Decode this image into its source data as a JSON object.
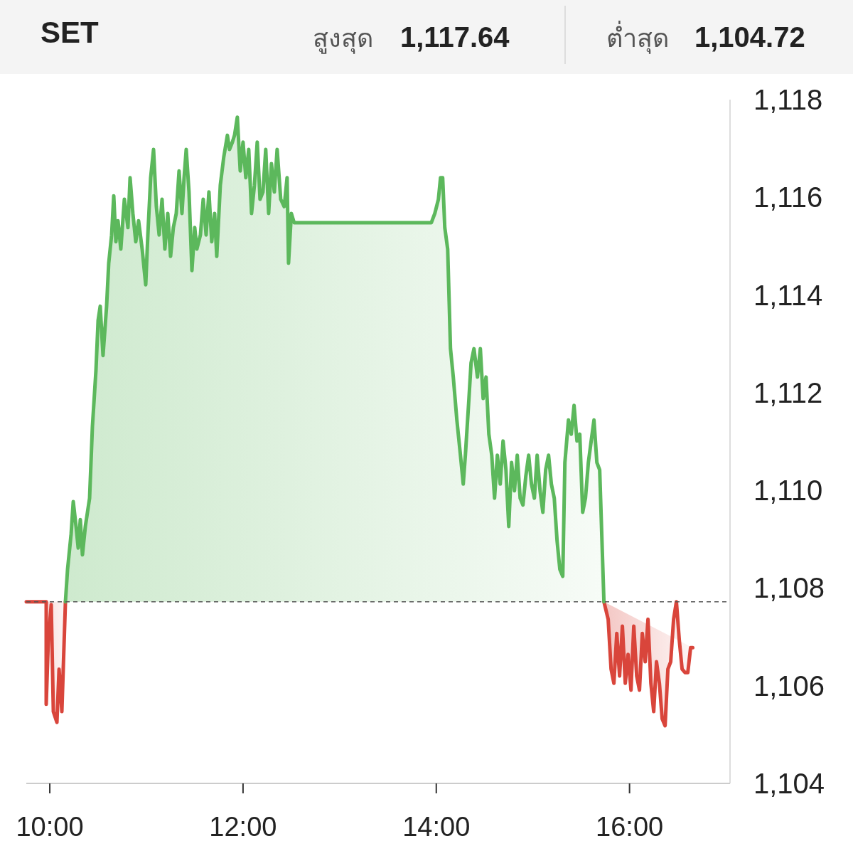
{
  "chart_data": {
    "type": "area",
    "title": "SET",
    "annotations": [
      "สูงสุด",
      "1,117.64",
      "ต่ำสุด",
      "1,104.72"
    ],
    "xlim": [
      9.757,
      17.04
    ],
    "ylim": [
      1104,
      1118
    ],
    "xticks": [
      {
        "value": 10,
        "label": "10:00"
      },
      {
        "value": 12,
        "label": "12:00"
      },
      {
        "value": 14,
        "label": "14:00"
      },
      {
        "value": 16,
        "label": "16:00"
      }
    ],
    "yticks": [
      {
        "value": 1104,
        "label": "1,104"
      },
      {
        "value": 1106,
        "label": "1,106"
      },
      {
        "value": 1108,
        "label": "1,108"
      },
      {
        "value": 1110,
        "label": "1,110"
      },
      {
        "value": 1112,
        "label": "1,112"
      },
      {
        "value": 1114,
        "label": "1,114"
      },
      {
        "value": 1116,
        "label": "1,116"
      },
      {
        "value": 1118,
        "label": "1,118"
      }
    ],
    "grid": false,
    "ref_lines": [
      {
        "axis": "y",
        "value": 1107.72,
        "color": "#555555",
        "line_style": "dashed"
      }
    ],
    "series": [
      {
        "color": "#d9453b",
        "x": [
          9.757,
          9.963,
          9.963,
          9.985,
          10.015,
          10.037,
          10.074,
          10.096,
          10.125,
          10.162
        ],
        "values": [
          1107.72,
          1107.72,
          1105.62,
          1106.93,
          1107.66,
          1105.47,
          1105.25,
          1106.34,
          1105.47,
          1107.72
        ]
      },
      {
        "color": "#d9453b",
        "x": [
          15.735,
          15.779,
          15.809,
          15.838,
          15.868,
          15.897,
          15.926,
          15.956,
          15.985,
          16.015,
          16.044,
          16.074,
          16.103,
          16.132,
          16.162,
          16.191,
          16.221,
          16.25,
          16.279,
          16.309,
          16.338,
          16.368,
          16.397,
          16.426,
          16.456,
          16.485,
          16.515,
          16.544,
          16.574,
          16.603,
          16.632,
          16.654
        ],
        "values": [
          1107.72,
          1107.36,
          1106.34,
          1106.05,
          1107.07,
          1106.2,
          1107.22,
          1106.05,
          1106.64,
          1105.91,
          1107.22,
          1106.2,
          1105.91,
          1107.07,
          1106.49,
          1107.36,
          1106.05,
          1105.47,
          1106.49,
          1106.05,
          1105.32,
          1105.18,
          1106.34,
          1106.49,
          1107.36,
          1107.72,
          1106.93,
          1106.34,
          1106.27,
          1106.27,
          1106.78,
          1106.78
        ]
      },
      {
        "color": "#5cb85c",
        "x": [
          10.162,
          10.184,
          10.221,
          10.243,
          10.272,
          10.294,
          10.316,
          10.338,
          10.368,
          10.412,
          10.441,
          10.478,
          10.5,
          10.522,
          10.551,
          10.588,
          10.61,
          10.64,
          10.662,
          10.684,
          10.706,
          10.735,
          10.772,
          10.809,
          10.831,
          10.86,
          10.89,
          10.919,
          10.956,
          10.993,
          11.015,
          11.044,
          11.074,
          11.103,
          11.132,
          11.162,
          11.191,
          11.221,
          11.25,
          11.279,
          11.309,
          11.338,
          11.368,
          11.39,
          11.412,
          11.441,
          11.471,
          11.5,
          11.522,
          11.559,
          11.588,
          11.618,
          11.647,
          11.676,
          11.706,
          11.728,
          11.765,
          11.801,
          11.838,
          11.86,
          11.89,
          11.912,
          11.941,
          11.971,
          12.0,
          12.029,
          12.059,
          12.088,
          12.118,
          12.147,
          12.176,
          12.206,
          12.235,
          12.265,
          12.294,
          12.324,
          12.353,
          12.39,
          12.426,
          12.456,
          12.471,
          12.5,
          12.529,
          13.949,
          13.985,
          14.022,
          14.044,
          14.066,
          14.088,
          14.118,
          14.147,
          14.176,
          14.213,
          14.25,
          14.279,
          14.301,
          14.338,
          14.36,
          14.39,
          14.426,
          14.456,
          14.485,
          14.515,
          14.544,
          14.574,
          14.603,
          14.632,
          14.662,
          14.691,
          14.721,
          14.75,
          14.779,
          14.809,
          14.838,
          14.868,
          14.897,
          14.926,
          14.956,
          14.985,
          15.015,
          15.044,
          15.074,
          15.103,
          15.132,
          15.162,
          15.191,
          15.221,
          15.25,
          15.279,
          15.309,
          15.331,
          15.368,
          15.397,
          15.426,
          15.456,
          15.485,
          15.515,
          15.544,
          15.574,
          15.603,
          15.632,
          15.662,
          15.691,
          15.735
        ],
        "values": [
          1107.72,
          1108.38,
          1109.11,
          1109.77,
          1109.26,
          1108.82,
          1109.4,
          1108.68,
          1109.26,
          1109.84,
          1111.3,
          1112.46,
          1113.48,
          1113.77,
          1112.76,
          1113.77,
          1114.65,
          1115.23,
          1116.03,
          1115.09,
          1115.52,
          1114.94,
          1115.96,
          1115.38,
          1116.4,
          1115.67,
          1115.09,
          1115.52,
          1114.94,
          1114.21,
          1115.23,
          1116.4,
          1116.98,
          1115.81,
          1115.23,
          1115.96,
          1114.94,
          1115.67,
          1114.79,
          1115.38,
          1115.67,
          1116.54,
          1115.67,
          1116.4,
          1116.98,
          1116.11,
          1114.5,
          1115.38,
          1114.94,
          1115.23,
          1115.96,
          1115.23,
          1116.11,
          1115.09,
          1115.67,
          1114.79,
          1116.25,
          1116.83,
          1117.27,
          1116.98,
          1117.13,
          1117.27,
          1117.64,
          1116.54,
          1117.13,
          1116.4,
          1116.98,
          1115.67,
          1116.25,
          1117.13,
          1115.96,
          1116.11,
          1116.98,
          1115.67,
          1116.69,
          1116.11,
          1116.98,
          1115.96,
          1115.81,
          1116.4,
          1114.65,
          1115.67,
          1115.48,
          1115.48,
          1115.67,
          1115.96,
          1116.4,
          1116.4,
          1115.38,
          1114.94,
          1112.9,
          1112.32,
          1111.44,
          1110.72,
          1110.13,
          1110.72,
          1111.88,
          1112.61,
          1112.9,
          1112.32,
          1112.9,
          1111.88,
          1112.32,
          1111.15,
          1110.72,
          1109.84,
          1110.72,
          1110.13,
          1111.01,
          1110.42,
          1109.26,
          1110.57,
          1109.99,
          1110.72,
          1109.84,
          1109.7,
          1110.28,
          1110.72,
          1110.13,
          1109.84,
          1110.72,
          1109.99,
          1109.55,
          1110.42,
          1110.72,
          1110.13,
          1109.84,
          1108.97,
          1108.38,
          1108.24,
          1110.57,
          1111.44,
          1111.15,
          1111.74,
          1111.01,
          1111.15,
          1109.55,
          1109.84,
          1110.57,
          1111.01,
          1111.44,
          1110.57,
          1110.42,
          1107.72
        ]
      }
    ]
  }
}
